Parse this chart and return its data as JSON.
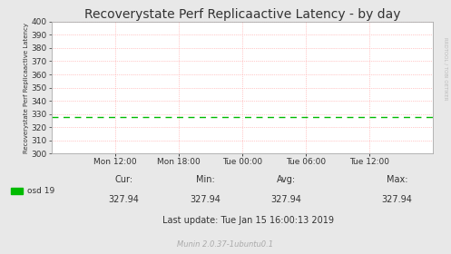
{
  "title": "Recoverystate Perf Replicaactive Latency - by day",
  "ylabel": "Recoverystate Perf Replicaactive Latency",
  "right_label": "RRDTOOL / TOBI OETIKER",
  "ylim": [
    300,
    400
  ],
  "yticks": [
    300,
    310,
    320,
    330,
    340,
    350,
    360,
    370,
    380,
    390,
    400
  ],
  "xtick_labels": [
    "Mon 12:00",
    "Mon 18:00",
    "Tue 00:00",
    "Tue 06:00",
    "Tue 12:00"
  ],
  "xtick_positions": [
    0.1667,
    0.3333,
    0.5,
    0.6667,
    0.8333
  ],
  "line_value": 327.94,
  "line_color": "#00bb00",
  "bg_color": "#e8e8e8",
  "plot_bg_color": "#ffffff",
  "grid_color": "#ff9999",
  "legend_label": "osd 19",
  "cur": "327.94",
  "min_val": "327.94",
  "avg": "327.94",
  "max_val": "327.94",
  "last_update": "Last update: Tue Jan 15 16:00:13 2019",
  "footer": "Munin 2.0.37-1ubuntu0.1",
  "title_fontsize": 10,
  "tick_fontsize": 6.5,
  "footer_fontsize": 6,
  "stats_fontsize": 7
}
